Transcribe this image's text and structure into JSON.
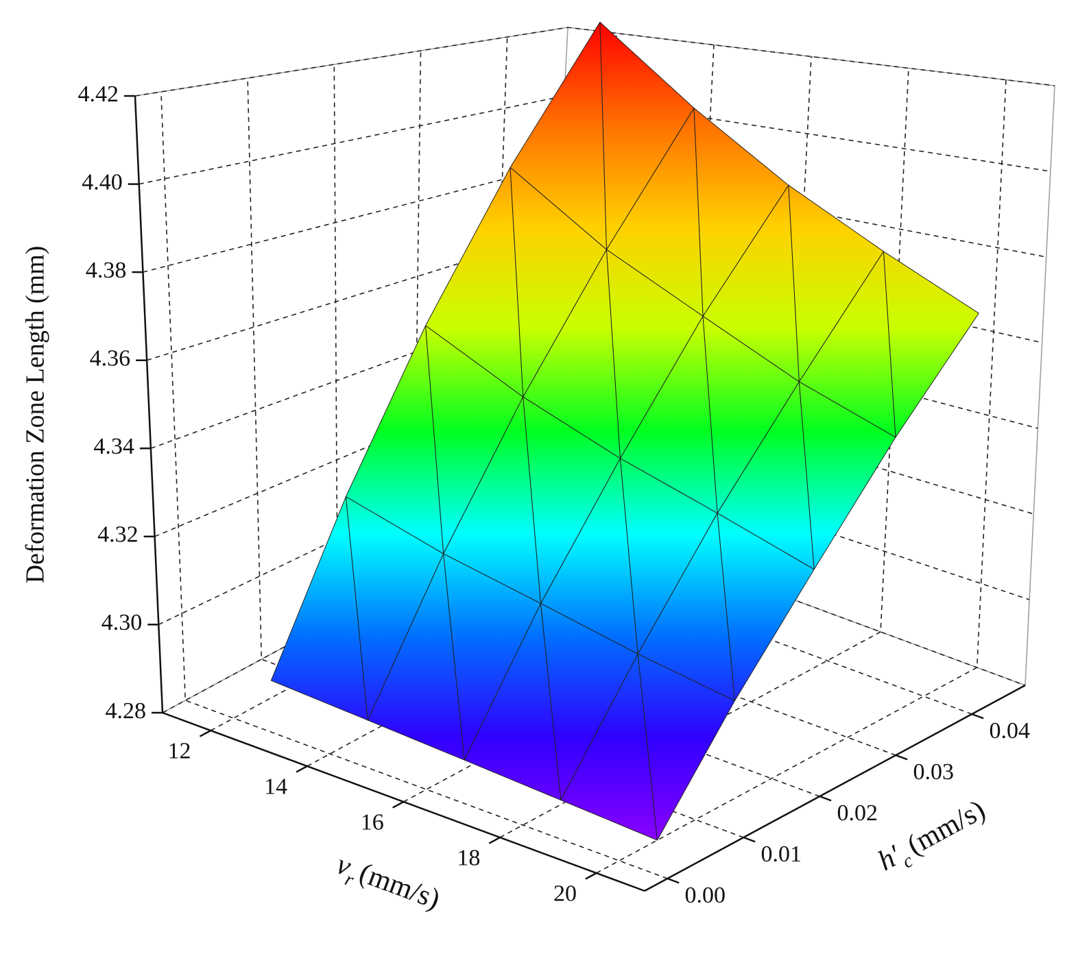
{
  "chart_data": {
    "type": "surface3d",
    "z_label": "Deformation Zone Length (mm)",
    "x_label": {
      "symbol": "v",
      "subscript": "r",
      "unit": "(mm/s)"
    },
    "y_label": {
      "symbol": "h′",
      "subscript": "c",
      "unit": "(mm/s)"
    },
    "x": [
      12,
      14,
      16,
      18,
      20
    ],
    "y": [
      0.005,
      0.015,
      0.025,
      0.035,
      0.045
    ],
    "z": [
      [
        4.284,
        4.319,
        4.354,
        4.389,
        4.424
      ],
      [
        4.283,
        4.313,
        4.343,
        4.373,
        4.404
      ],
      [
        4.282,
        4.309,
        4.335,
        4.362,
        4.388
      ],
      [
        4.281,
        4.305,
        4.329,
        4.352,
        4.376
      ],
      [
        4.28,
        4.302,
        4.323,
        4.345,
        4.366
      ]
    ],
    "xlim": [
      11,
      21
    ],
    "xticks": [
      12,
      14,
      16,
      18,
      20
    ],
    "ylim": [
      -0.003,
      0.047
    ],
    "yticks": [
      {
        "value": 0,
        "label": "0.00"
      },
      {
        "value": 0.01,
        "label": "0.01"
      },
      {
        "value": 0.02,
        "label": "0.02"
      },
      {
        "value": 0.03,
        "label": "0.03"
      },
      {
        "value": 0.04,
        "label": "0.04"
      }
    ],
    "zlim": [
      4.28,
      4.42
    ],
    "zticks": [
      4.28,
      {
        "value": 4.3,
        "label": "4.30"
      },
      4.32,
      4.34,
      4.36,
      4.38,
      {
        "value": 4.4,
        "label": "4.40"
      },
      4.42
    ],
    "grid": true,
    "colormap": [
      "#8a00ff",
      "#3000ff",
      "#0070ff",
      "#00ffff",
      "#00ff20",
      "#c8ff00",
      "#ffd000",
      "#ff7000",
      "#ff0000"
    ]
  }
}
